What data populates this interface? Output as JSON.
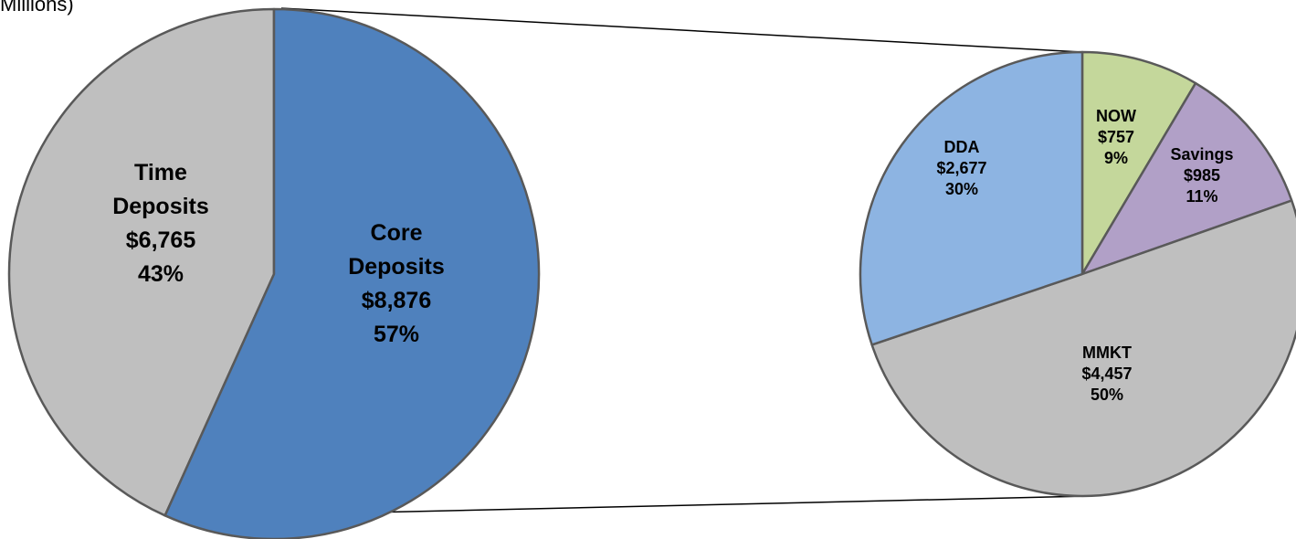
{
  "caption_fragment": "Millions)",
  "chart_data": [
    {
      "type": "pie",
      "categories": [
        "Time Deposits",
        "Core Deposits"
      ],
      "values": [
        6765,
        8876
      ],
      "slices": [
        {
          "name": "Time Deposits",
          "label_lines": [
            "Time",
            "Deposits",
            "$6,765",
            "43%"
          ],
          "value": 6765,
          "percent": 43,
          "color": "#BFBFBF"
        },
        {
          "name": "Core Deposits",
          "label_lines": [
            "Core",
            "Deposits",
            "$8,876",
            "57%"
          ],
          "value": 8876,
          "percent": 57,
          "color": "#4F81BD"
        }
      ]
    },
    {
      "type": "pie",
      "categories": [
        "NOW",
        "Savings",
        "MMKT",
        "DDA"
      ],
      "values": [
        757,
        985,
        4457,
        2677
      ],
      "slices": [
        {
          "name": "NOW",
          "label_lines": [
            "NOW",
            "$757",
            "9%"
          ],
          "value": 757,
          "percent": 9,
          "color": "#C4D79B"
        },
        {
          "name": "Savings",
          "label_lines": [
            "Savings",
            "$985",
            "11%"
          ],
          "value": 985,
          "percent": 11,
          "color": "#B1A0C7"
        },
        {
          "name": "MMKT",
          "label_lines": [
            "MMKT",
            "$4,457",
            "50%"
          ],
          "value": 4457,
          "percent": 50,
          "color": "#BFBFBF"
        },
        {
          "name": "DDA",
          "label_lines": [
            "DDA",
            "$2,677",
            "30%"
          ],
          "value": 2677,
          "percent": 30,
          "color": "#8DB4E2"
        }
      ]
    }
  ]
}
